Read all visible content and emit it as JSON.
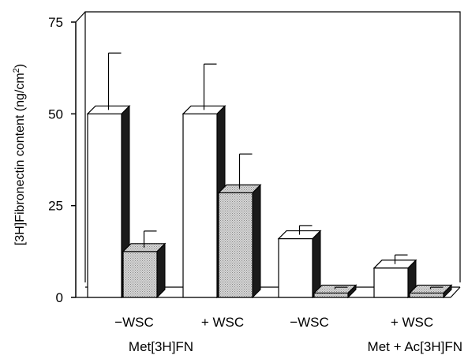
{
  "chart_data": {
    "type": "bar",
    "style": "3d-clustered-bar",
    "ylabel": "[3H]Fibronectin content (ng/cm",
    "ylabel_superscript": "2",
    "ylabel_suffix": ")",
    "ylim": [
      0,
      75
    ],
    "yticks": [
      "0",
      "25",
      "50",
      "75"
    ],
    "yticks_values": [
      0,
      25,
      50,
      75
    ],
    "categories": [
      "−WSC",
      "+ WSC",
      "−WSC",
      "+ WSC"
    ],
    "groups": [
      {
        "label": "Met[3H]FN",
        "categories": [
          0,
          1
        ]
      },
      {
        "label": "Met + Ac[3H]FN",
        "categories": [
          2,
          3
        ]
      }
    ],
    "series": [
      {
        "values": [
          50,
          50,
          16,
          8
        ],
        "errors": [
          15.5,
          12.5,
          2.5,
          2.5
        ],
        "color": "#ffffff"
      },
      {
        "values": [
          12.5,
          28.5,
          1.2,
          1.2
        ],
        "errors": [
          4.5,
          9.5,
          0.5,
          0.5
        ],
        "color": "#cccccc"
      }
    ],
    "grid": false,
    "legend": "none"
  }
}
